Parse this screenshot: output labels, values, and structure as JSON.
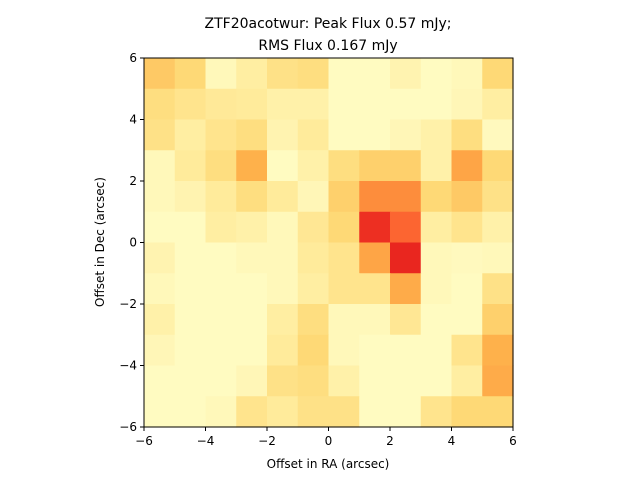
{
  "chart_data": {
    "type": "heatmap",
    "title_line1": "ZTF20acotwur: Peak Flux 0.57 mJy;",
    "title_line2": "RMS Flux 0.167 mJy",
    "xlabel": "Offset in RA (arcsec)",
    "ylabel": "Offset in Dec (arcsec)",
    "xlim": [
      -6,
      6
    ],
    "ylim": [
      -6,
      6
    ],
    "xticks": [
      -6,
      -4,
      -2,
      0,
      2,
      4,
      6
    ],
    "yticks": [
      -6,
      -4,
      -2,
      0,
      2,
      4,
      6
    ],
    "tick_labels": {
      "x": [
        "−6",
        "−4",
        "−2",
        "0",
        "2",
        "4",
        "6"
      ],
      "y": [
        "−6",
        "−4",
        "−2",
        "0",
        "2",
        "4",
        "6"
      ]
    },
    "colormap": "YlOrRd",
    "vmin": 0,
    "vmax": 1,
    "rows_top_to_bottom": [
      [
        0.3,
        0.25,
        0.05,
        0.12,
        0.2,
        0.22,
        0.03,
        0.03,
        0.08,
        0.03,
        0.05,
        0.25
      ],
      [
        0.22,
        0.18,
        0.15,
        0.14,
        0.1,
        0.1,
        0.03,
        0.03,
        0.03,
        0.03,
        0.06,
        0.12
      ],
      [
        0.2,
        0.12,
        0.18,
        0.22,
        0.08,
        0.14,
        0.03,
        0.03,
        0.06,
        0.1,
        0.22,
        0.04
      ],
      [
        0.05,
        0.14,
        0.22,
        0.38,
        0.03,
        0.1,
        0.22,
        0.28,
        0.28,
        0.1,
        0.42,
        0.25
      ],
      [
        0.05,
        0.08,
        0.14,
        0.22,
        0.14,
        0.06,
        0.28,
        0.5,
        0.5,
        0.25,
        0.3,
        0.2
      ],
      [
        0.03,
        0.03,
        0.12,
        0.1,
        0.05,
        0.16,
        0.25,
        0.7,
        0.58,
        0.12,
        0.18,
        0.1
      ],
      [
        0.08,
        0.03,
        0.03,
        0.05,
        0.05,
        0.14,
        0.18,
        0.42,
        0.72,
        0.05,
        0.04,
        0.05
      ],
      [
        0.05,
        0.03,
        0.03,
        0.03,
        0.05,
        0.12,
        0.18,
        0.18,
        0.4,
        0.05,
        0.03,
        0.2
      ],
      [
        0.1,
        0.03,
        0.03,
        0.03,
        0.12,
        0.22,
        0.05,
        0.05,
        0.16,
        0.03,
        0.03,
        0.28
      ],
      [
        0.06,
        0.03,
        0.03,
        0.03,
        0.14,
        0.25,
        0.05,
        0.03,
        0.03,
        0.03,
        0.18,
        0.38
      ],
      [
        0.03,
        0.03,
        0.03,
        0.06,
        0.2,
        0.22,
        0.1,
        0.03,
        0.03,
        0.03,
        0.12,
        0.4
      ],
      [
        0.03,
        0.03,
        0.05,
        0.18,
        0.14,
        0.2,
        0.2,
        0.03,
        0.03,
        0.18,
        0.25,
        0.25
      ]
    ]
  }
}
